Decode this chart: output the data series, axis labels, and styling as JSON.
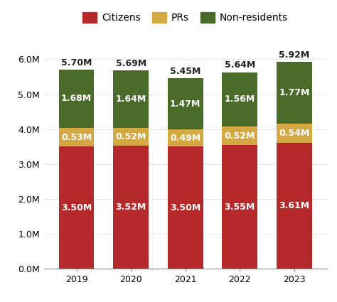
{
  "years": [
    "2019",
    "2020",
    "2021",
    "2022",
    "2023"
  ],
  "citizens": [
    3.5,
    3.52,
    3.5,
    3.55,
    3.61
  ],
  "prs": [
    0.53,
    0.52,
    0.49,
    0.52,
    0.54
  ],
  "non_residents": [
    1.68,
    1.64,
    1.47,
    1.56,
    1.77
  ],
  "totals": [
    5.7,
    5.69,
    5.45,
    5.64,
    5.92
  ],
  "citizen_labels": [
    "3.50M",
    "3.52M",
    "3.50M",
    "3.55M",
    "3.61M"
  ],
  "pr_labels": [
    "0.53M",
    "0.52M",
    "0.49M",
    "0.52M",
    "0.54M"
  ],
  "nr_labels": [
    "1.68M",
    "1.64M",
    "1.47M",
    "1.56M",
    "1.77M"
  ],
  "total_labels": [
    "5.70M",
    "5.69M",
    "5.45M",
    "5.64M",
    "5.92M"
  ],
  "citizen_color": "#b5292a",
  "pr_color": "#d4a843",
  "nr_color": "#4a6b2a",
  "background_color": "#ffffff",
  "label_color": "#ffffff",
  "total_label_color": "#222222",
  "bar_width": 0.65,
  "ylim": [
    0,
    6.4
  ],
  "yticks": [
    0.0,
    1.0,
    2.0,
    3.0,
    4.0,
    5.0,
    6.0
  ],
  "ytick_labels": [
    "0.0M",
    "1.0M",
    "2.0M",
    "3.0M",
    "4.0M",
    "5.0M",
    "6.0M"
  ],
  "legend_labels": [
    "Citizens",
    "PRs",
    "Non-residents"
  ],
  "label_fontsize": 9.0,
  "total_label_fontsize": 9.0,
  "tick_fontsize": 9,
  "legend_fontsize": 10
}
